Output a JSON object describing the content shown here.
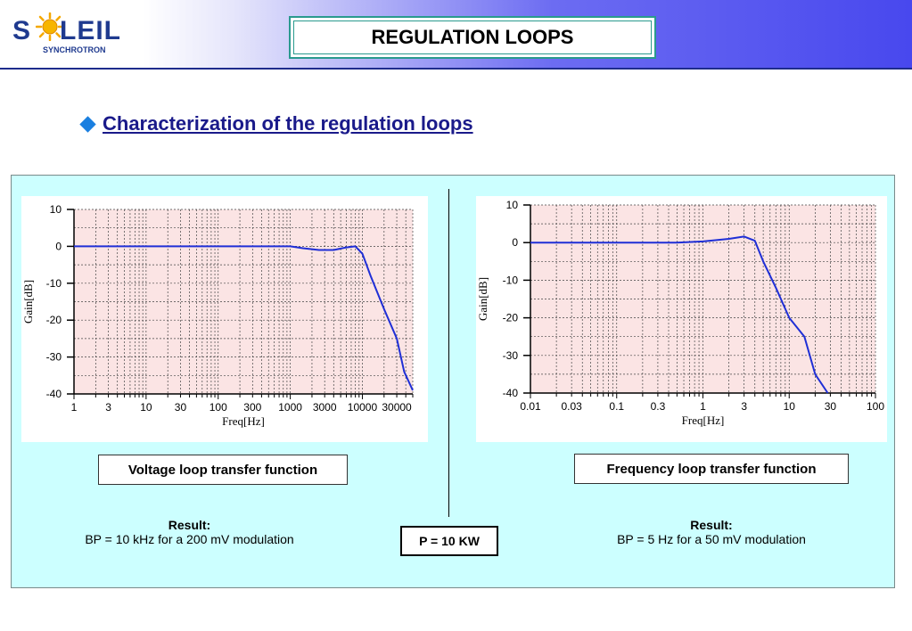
{
  "header": {
    "logo_text": "SOLEIL",
    "logo_sub": "SYNCHROTRON",
    "title": "REGULATION LOOPS"
  },
  "subtitle": "Characterization of the regulation loops",
  "colors": {
    "panel_bg": "#ccffff",
    "plot_bg": "#fbe4e4",
    "curve": "#1f2fd6",
    "title_border": "#2a9a8e",
    "subtitle": "#1a1a8a",
    "bullet": "#1a7fe0"
  },
  "left": {
    "caption": "Voltage loop transfer function",
    "result_heading": "Result:",
    "result_text": "BP = 10 kHz for a 200 mV modulation"
  },
  "right": {
    "caption": "Frequency loop transfer function",
    "result_heading": "Result:",
    "result_text": "BP = 5 Hz for a 50 mV modulation"
  },
  "power_label": "P = 10 KW",
  "chart_data": [
    {
      "type": "line",
      "xscale": "log",
      "xlabel": "Freq[Hz]",
      "ylabel": "Gain[dB]",
      "xlim": [
        1,
        50000
      ],
      "ylim": [
        -40,
        10
      ],
      "xticks": [
        1,
        3,
        10,
        30,
        100,
        300,
        1000,
        3000,
        10000,
        30000
      ],
      "xtick_labels": [
        "1",
        "3",
        "10",
        "30",
        "100",
        "300",
        "1000",
        "3000",
        "10000",
        "30000"
      ],
      "yticks": [
        10,
        0,
        -10,
        -20,
        -30,
        -40
      ],
      "grid": true,
      "series": [
        {
          "x": [
            1,
            10,
            100,
            1000,
            1500,
            2500,
            4000,
            6000,
            8000,
            10000,
            13000,
            20000,
            30000,
            38000,
            50000
          ],
          "y": [
            0,
            0,
            0,
            0,
            -0.5,
            -1,
            -1,
            -0.3,
            0,
            -2,
            -8,
            -17,
            -25,
            -34,
            -39
          ]
        }
      ]
    },
    {
      "type": "line",
      "xscale": "log",
      "xlabel": "Freq[Hz]",
      "ylabel": "Gain[dB]",
      "xlim": [
        0.01,
        100
      ],
      "ylim": [
        -40,
        10
      ],
      "xticks": [
        0.01,
        0.03,
        0.1,
        0.3,
        1,
        3,
        10,
        30,
        100
      ],
      "xtick_labels": [
        "0.01",
        "0.03",
        "0.1",
        "0.3",
        "1",
        "3",
        "10",
        "30",
        "100"
      ],
      "yticks": [
        10,
        0,
        -10,
        -20,
        -30,
        -40
      ],
      "grid": true,
      "series": [
        {
          "x": [
            0.01,
            0.1,
            0.5,
            1,
            2,
            3,
            4,
            5,
            7,
            10,
            15,
            20,
            28
          ],
          "y": [
            0,
            0,
            0,
            0.3,
            1,
            1.6,
            0.5,
            -5,
            -12,
            -20,
            -25,
            -35,
            -40
          ]
        }
      ]
    }
  ]
}
